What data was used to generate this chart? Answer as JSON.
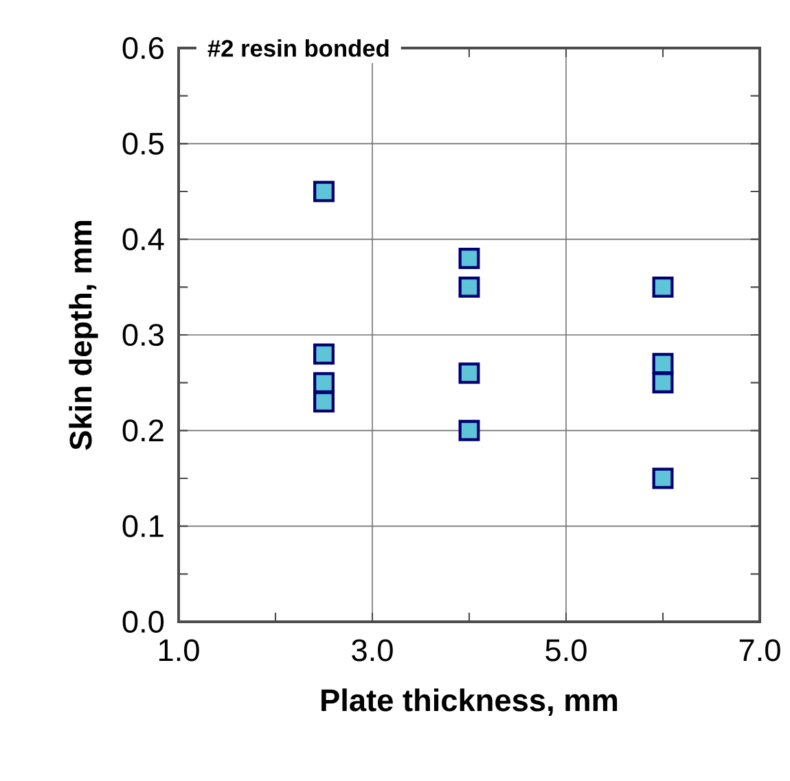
{
  "chart_data": {
    "type": "scatter",
    "title": "#2 resin bonded",
    "xlabel": "Plate thickness, mm",
    "ylabel": "Skin depth, mm",
    "series": [
      {
        "color": "#5ec4d8",
        "x": [
          2.5,
          2.5,
          2.5,
          2.5,
          4.0,
          4.0,
          4.0,
          4.0,
          6.0,
          6.0,
          6.0,
          6.0
        ],
        "values": [
          0.45,
          0.28,
          0.25,
          0.23,
          0.38,
          0.35,
          0.26,
          0.2,
          0.35,
          0.27,
          0.25,
          0.15
        ]
      }
    ],
    "xlim": [
      1,
      7
    ],
    "ylim": [
      0,
      0.6
    ],
    "xticks": [
      {
        "value": 1,
        "label": "1.0"
      },
      {
        "value": 3,
        "label": "3.0"
      },
      {
        "value": 5,
        "label": "5.0"
      },
      {
        "value": 7,
        "label": "7.0"
      }
    ],
    "yticks": [
      {
        "value": 0,
        "label": "0.0"
      },
      {
        "value": 0.1,
        "label": "0.1"
      },
      {
        "value": 0.2,
        "label": "0.2"
      },
      {
        "value": 0.3,
        "label": "0.3"
      },
      {
        "value": 0.4,
        "label": "0.4"
      },
      {
        "value": 0.5,
        "label": "0.5"
      },
      {
        "value": 0.6,
        "label": "0.6"
      }
    ],
    "grid": true,
    "marker": "square"
  }
}
